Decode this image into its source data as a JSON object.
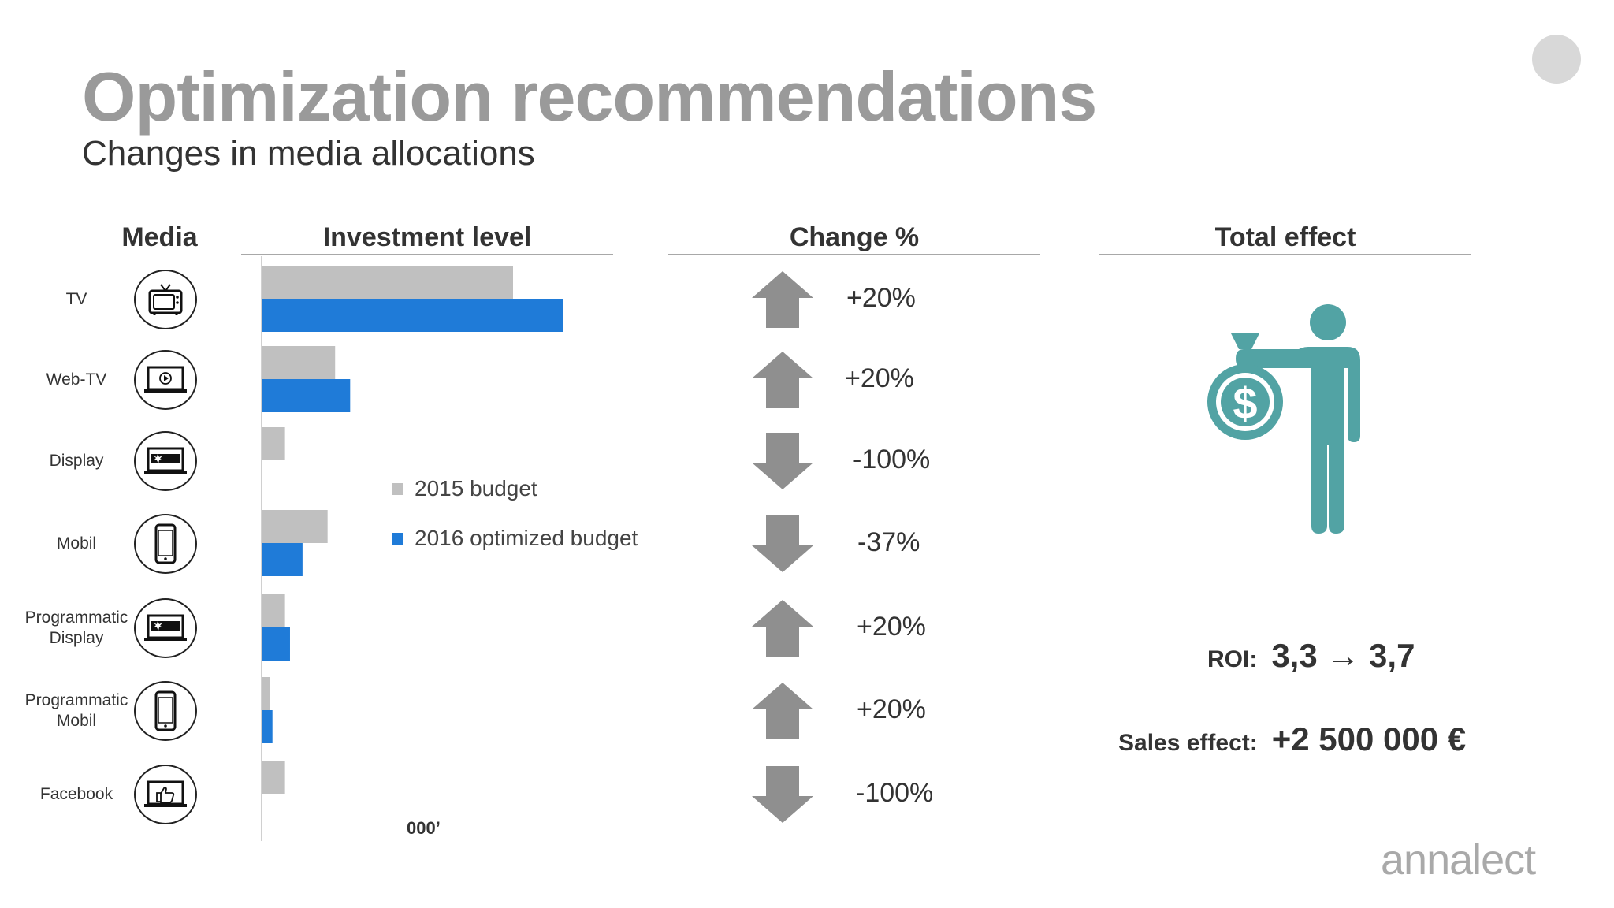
{
  "title": "Optimization recommendations",
  "subtitle": "Changes in media allocations",
  "headers": {
    "media": "Media",
    "investment": "Investment level",
    "change": "Change %",
    "total": "Total effect"
  },
  "media": [
    {
      "label": "TV",
      "icon": "tv-icon",
      "change": "+20%",
      "direction": "up"
    },
    {
      "label": "Web-TV",
      "icon": "laptop-video-icon",
      "change": "+20%",
      "direction": "up"
    },
    {
      "label": "Display",
      "icon": "laptop-banner-icon",
      "change": "-100%",
      "direction": "down"
    },
    {
      "label": "Mobil",
      "icon": "smartphone-icon",
      "change": "-37%",
      "direction": "down"
    },
    {
      "label": "Programmatic\nDisplay",
      "icon": "laptop-banner-icon",
      "change": "+20%",
      "direction": "up"
    },
    {
      "label": "Programmatic\nMobil",
      "icon": "smartphone-icon",
      "change": "+20%",
      "direction": "up"
    },
    {
      "label": "Facebook",
      "icon": "laptop-thumbs-up-icon",
      "change": "-100%",
      "direction": "down"
    }
  ],
  "chart_data": {
    "type": "bar",
    "orientation": "horizontal",
    "categories": [
      "TV",
      "Web-TV",
      "Display",
      "Mobil",
      "Programmatic Display",
      "Programmatic Mobil",
      "Facebook"
    ],
    "series": [
      {
        "name": "2015 budget",
        "color": "#c0c0c0",
        "values": [
          100,
          29,
          9,
          26,
          9,
          3,
          9
        ]
      },
      {
        "name": "2016 optimized budget",
        "color": "#1f7bd8",
        "values": [
          120,
          35,
          0,
          16,
          11,
          4,
          0
        ]
      }
    ],
    "unit_label": "000’",
    "grid": false,
    "legend_position": "middle"
  },
  "effect": {
    "roi_label": "ROI:",
    "roi_value": "3,3 → 3,7",
    "sales_label": "Sales effect:",
    "sales_value": "+2 500 000 €",
    "icon": "person-money-bag-icon",
    "icon_color": "#52a3a4"
  },
  "logo": "annalect",
  "colors": {
    "arrow": "#8f8f8f",
    "title": "#9a9a9a"
  }
}
